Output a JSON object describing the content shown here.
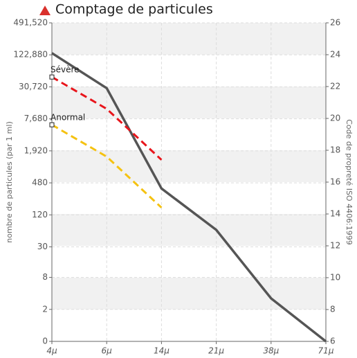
{
  "chart_data": {
    "type": "line",
    "title": "Comptage de particules",
    "y_label": "nombre de particules (par 1 ml)",
    "y2_label": "Code de propreté ISO 4406:1999",
    "categories": [
      "4µ",
      "6µ",
      "14µ",
      "21µ",
      "38µ",
      "71µ"
    ],
    "log_y": true,
    "ylim": [
      0.5,
      491520
    ],
    "yticks": [
      0,
      2,
      8,
      30,
      120,
      480,
      {
        "value": 1920,
        "label": "1,920"
      },
      {
        "value": 7680,
        "label": "7,680"
      },
      {
        "value": 30720,
        "label": "30,720"
      },
      {
        "value": 122880,
        "label": "122,880"
      },
      {
        "value": 491520,
        "label": "491,520"
      }
    ],
    "y2lim": [
      6,
      26
    ],
    "y2ticks": [
      6,
      8,
      10,
      12,
      14,
      16,
      18,
      20,
      22,
      24,
      26
    ],
    "grid": true,
    "series": [
      {
        "color": "#555555",
        "axis": "y2",
        "values": [
          24.1,
          21.9,
          15.6,
          13.0,
          8.7,
          6
        ]
      },
      {
        "name": "Sévère",
        "color": "#e8151b",
        "axis": "y2",
        "dashed": true,
        "values": [
          22.6,
          20.6,
          17.4,
          null,
          null,
          null
        ]
      },
      {
        "name": "Anormal",
        "color": "#f5c211",
        "axis": "y2",
        "dashed": true,
        "values": [
          19.6,
          17.6,
          14.4,
          null,
          null,
          null
        ]
      }
    ]
  }
}
